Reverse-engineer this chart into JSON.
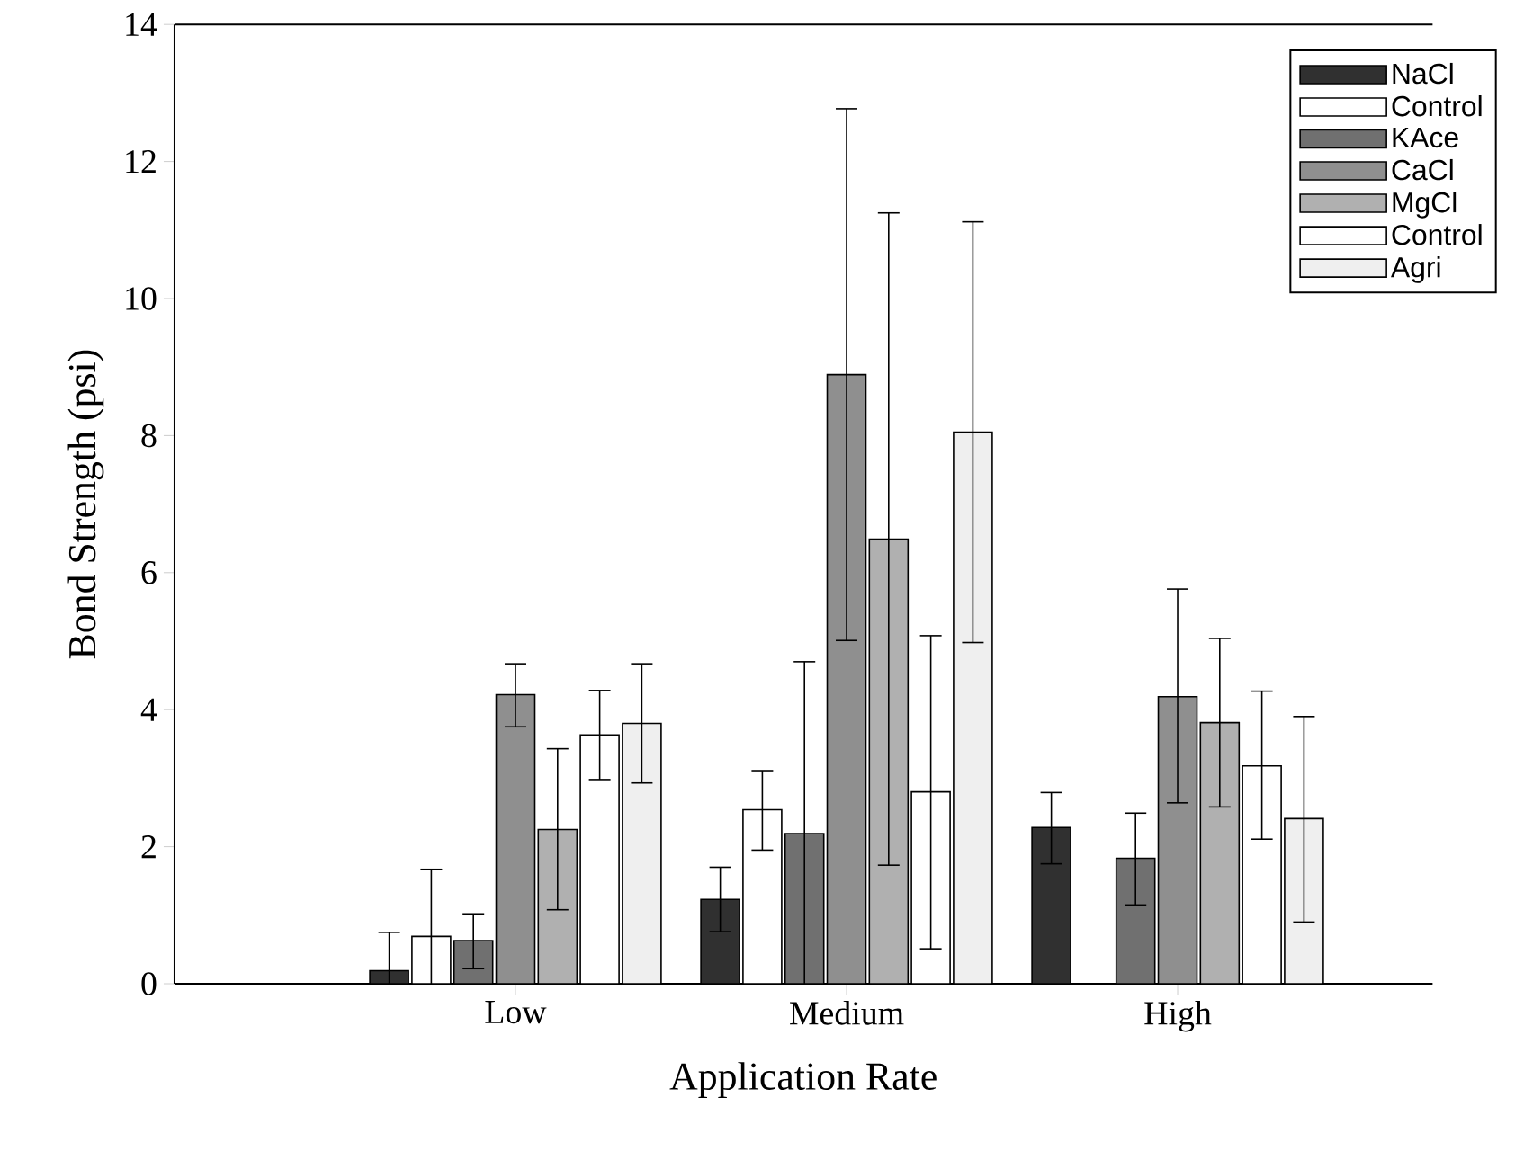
{
  "chart_data": {
    "type": "bar",
    "xlabel": "Application Rate",
    "ylabel": "Bond Strength (psi)",
    "categories": [
      "Low",
      "Medium",
      "High"
    ],
    "ylim": [
      0,
      14
    ],
    "yticks": [
      0,
      2,
      4,
      6,
      8,
      10,
      12,
      14
    ],
    "legend": "top right",
    "series": [
      {
        "name": "NaCl",
        "color": "#303030",
        "values": [
          0.19,
          1.23,
          2.28
        ],
        "errors": [
          [
            0,
            0.75
          ],
          [
            0.76,
            1.7
          ],
          [
            1.75,
            2.79
          ]
        ]
      },
      {
        "name": "Control",
        "color": "#ffffff",
        "values": [
          0.69,
          2.54,
          null
        ],
        "errors": [
          [
            0,
            1.67
          ],
          [
            1.95,
            3.11
          ],
          null
        ]
      },
      {
        "name": "KAce",
        "color": "#707070",
        "values": [
          0.63,
          2.19,
          1.83
        ],
        "errors": [
          [
            0.22,
            1.02
          ],
          [
            0,
            4.7
          ],
          [
            1.15,
            2.49
          ]
        ]
      },
      {
        "name": "CaCl",
        "color": "#8f8f8f",
        "values": [
          4.22,
          8.89,
          4.19
        ],
        "errors": [
          [
            3.75,
            4.67
          ],
          [
            5.01,
            12.77
          ],
          [
            2.64,
            5.76
          ]
        ]
      },
      {
        "name": "MgCl",
        "color": "#b0b0b0",
        "values": [
          2.25,
          6.49,
          3.81
        ],
        "errors": [
          [
            1.08,
            3.43
          ],
          [
            1.73,
            11.25
          ],
          [
            2.58,
            5.04
          ]
        ]
      },
      {
        "name": "Control",
        "color": "#ffffff",
        "values": [
          3.63,
          2.8,
          3.18
        ],
        "errors": [
          [
            2.98,
            4.28
          ],
          [
            0.51,
            5.08
          ],
          [
            2.11,
            4.27
          ]
        ]
      },
      {
        "name": "Agri",
        "color": "#efefef",
        "values": [
          3.8,
          8.05,
          2.41
        ],
        "errors": [
          [
            2.93,
            4.67
          ],
          [
            4.98,
            11.12
          ],
          [
            0.9,
            3.9
          ]
        ]
      }
    ]
  }
}
